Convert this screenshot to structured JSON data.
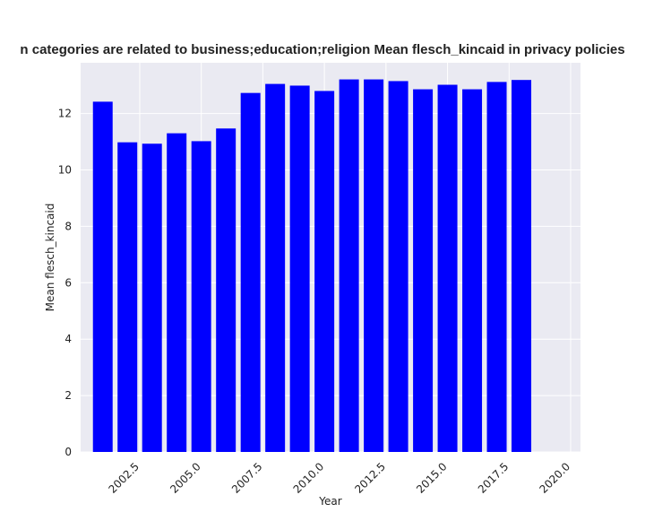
{
  "chart_data": {
    "type": "bar",
    "title": "n categories are related to business;education;religion Mean flesch_kincaid in privacy policies",
    "xlabel": "Year",
    "ylabel": "Mean flesch_kincaid",
    "xlim": [
      2000.1,
      2020.4
    ],
    "ylim": [
      0,
      13.8
    ],
    "xticks": [
      "2002.5",
      "2005.0",
      "2007.5",
      "2010.0",
      "2012.5",
      "2015.0",
      "2017.5",
      "2020.0"
    ],
    "yticks": [
      "0",
      "2",
      "4",
      "6",
      "8",
      "10",
      "12"
    ],
    "x": [
      2001,
      2002,
      2003,
      2004,
      2005,
      2006,
      2007,
      2008,
      2009,
      2010,
      2011,
      2012,
      2013,
      2014,
      2015,
      2016,
      2017,
      2018
    ],
    "values": [
      12.42,
      10.98,
      10.93,
      11.3,
      11.02,
      11.47,
      12.73,
      13.05,
      12.99,
      12.8,
      13.21,
      13.21,
      13.15,
      12.86,
      13.02,
      12.86,
      13.12,
      13.19
    ],
    "bar_color": "#0000ff",
    "background": "#eaeaf2",
    "grid": true,
    "legend": "none"
  }
}
